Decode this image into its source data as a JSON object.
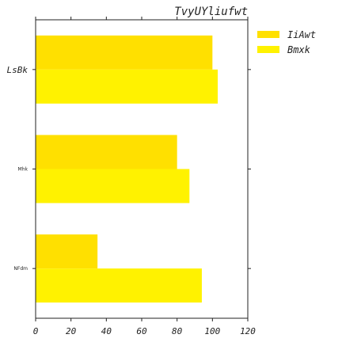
{
  "chart_data": {
    "type": "bar",
    "orientation": "horizontal",
    "title": "TvyUYliufwt",
    "xlabel": "",
    "ylabel": "",
    "categories": [
      "LsBk",
      "Mhk",
      "NFdm"
    ],
    "series": [
      {
        "name": "IiAwt",
        "values": [
          100,
          80,
          35
        ],
        "color": "#FFE000"
      },
      {
        "name": "Bmxk",
        "values": [
          103,
          87,
          94
        ],
        "color": "#FFF200"
      }
    ],
    "xlim": [
      0,
      120
    ],
    "xticks": [
      0,
      20,
      40,
      60,
      80,
      100,
      120
    ],
    "grid": false,
    "legend": "outside-top-right"
  }
}
